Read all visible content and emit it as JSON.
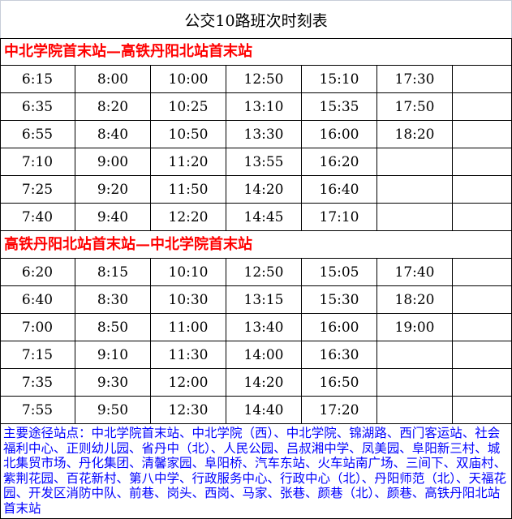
{
  "title": "公交10路班次时刻表",
  "sections": [
    {
      "header": "中北学院首末站—高铁丹阳北站首末站",
      "rows": [
        [
          "6:15",
          "8:00",
          "10:00",
          "12:50",
          "15:10",
          "17:30",
          ""
        ],
        [
          "6:35",
          "8:20",
          "10:25",
          "13:10",
          "15:35",
          "17:50",
          ""
        ],
        [
          "6:55",
          "8:40",
          "10:50",
          "13:30",
          "16:00",
          "18:20",
          ""
        ],
        [
          "7:10",
          "9:00",
          "11:20",
          "13:55",
          "16:20",
          "",
          ""
        ],
        [
          "7:25",
          "9:20",
          "11:50",
          "14:20",
          "16:40",
          "",
          ""
        ],
        [
          "7:40",
          "9:40",
          "12:20",
          "14:45",
          "17:10",
          "",
          ""
        ]
      ]
    },
    {
      "header": "高铁丹阳北站首末站—中北学院首末站",
      "rows": [
        [
          "6:20",
          "8:15",
          "10:10",
          "12:50",
          "15:05",
          "17:40",
          ""
        ],
        [
          "6:40",
          "8:30",
          "10:30",
          "13:15",
          "15:30",
          "18:20",
          ""
        ],
        [
          "7:00",
          "8:50",
          "11:00",
          "13:40",
          "16:00",
          "19:00",
          ""
        ],
        [
          "7:15",
          "9:10",
          "11:30",
          "14:00",
          "16:30",
          "",
          ""
        ],
        [
          "7:35",
          "9:30",
          "12:00",
          "14:20",
          "16:50",
          "",
          ""
        ],
        [
          "7:55",
          "9:50",
          "12:30",
          "14:40",
          "17:20",
          "",
          ""
        ]
      ]
    }
  ],
  "stops": "主要途径站点：中北学院首末站、中北学院（西）、中北学院、锦湖路、西门客运站、社会福利中心、正则幼儿园、省丹中（北）、人民公园、吕叔湘中学、凤美园、阜阳新三村、城北集贸市场、丹化集团、清馨家园、阜阳桥、汽车东站、火车站南广场、三间下、双庙村、紫荆花园、百花新村、第八中学、行政服务中心、行政中心（北）、丹阳师范（北）、天福花园、开发区消防中队、前巷、岗头、西岗、马家、张巷、颜巷（北）、颜巷、高铁丹阳北站首末站"
}
